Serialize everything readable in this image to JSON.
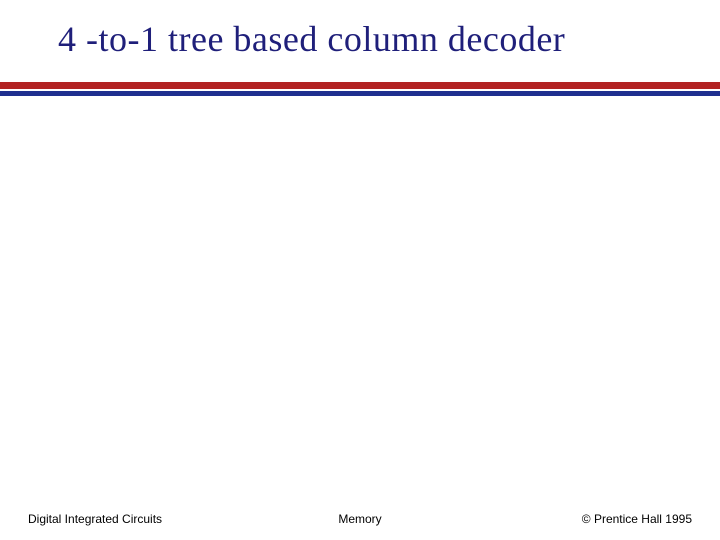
{
  "title": "4 -to-1 tree based column decoder",
  "divider": {
    "red_color": "#b22222",
    "blue_color": "#1f2f8f"
  },
  "footer": {
    "left": "Digital Integrated Circuits",
    "center": "Memory",
    "right": "© Prentice Hall 1995"
  }
}
